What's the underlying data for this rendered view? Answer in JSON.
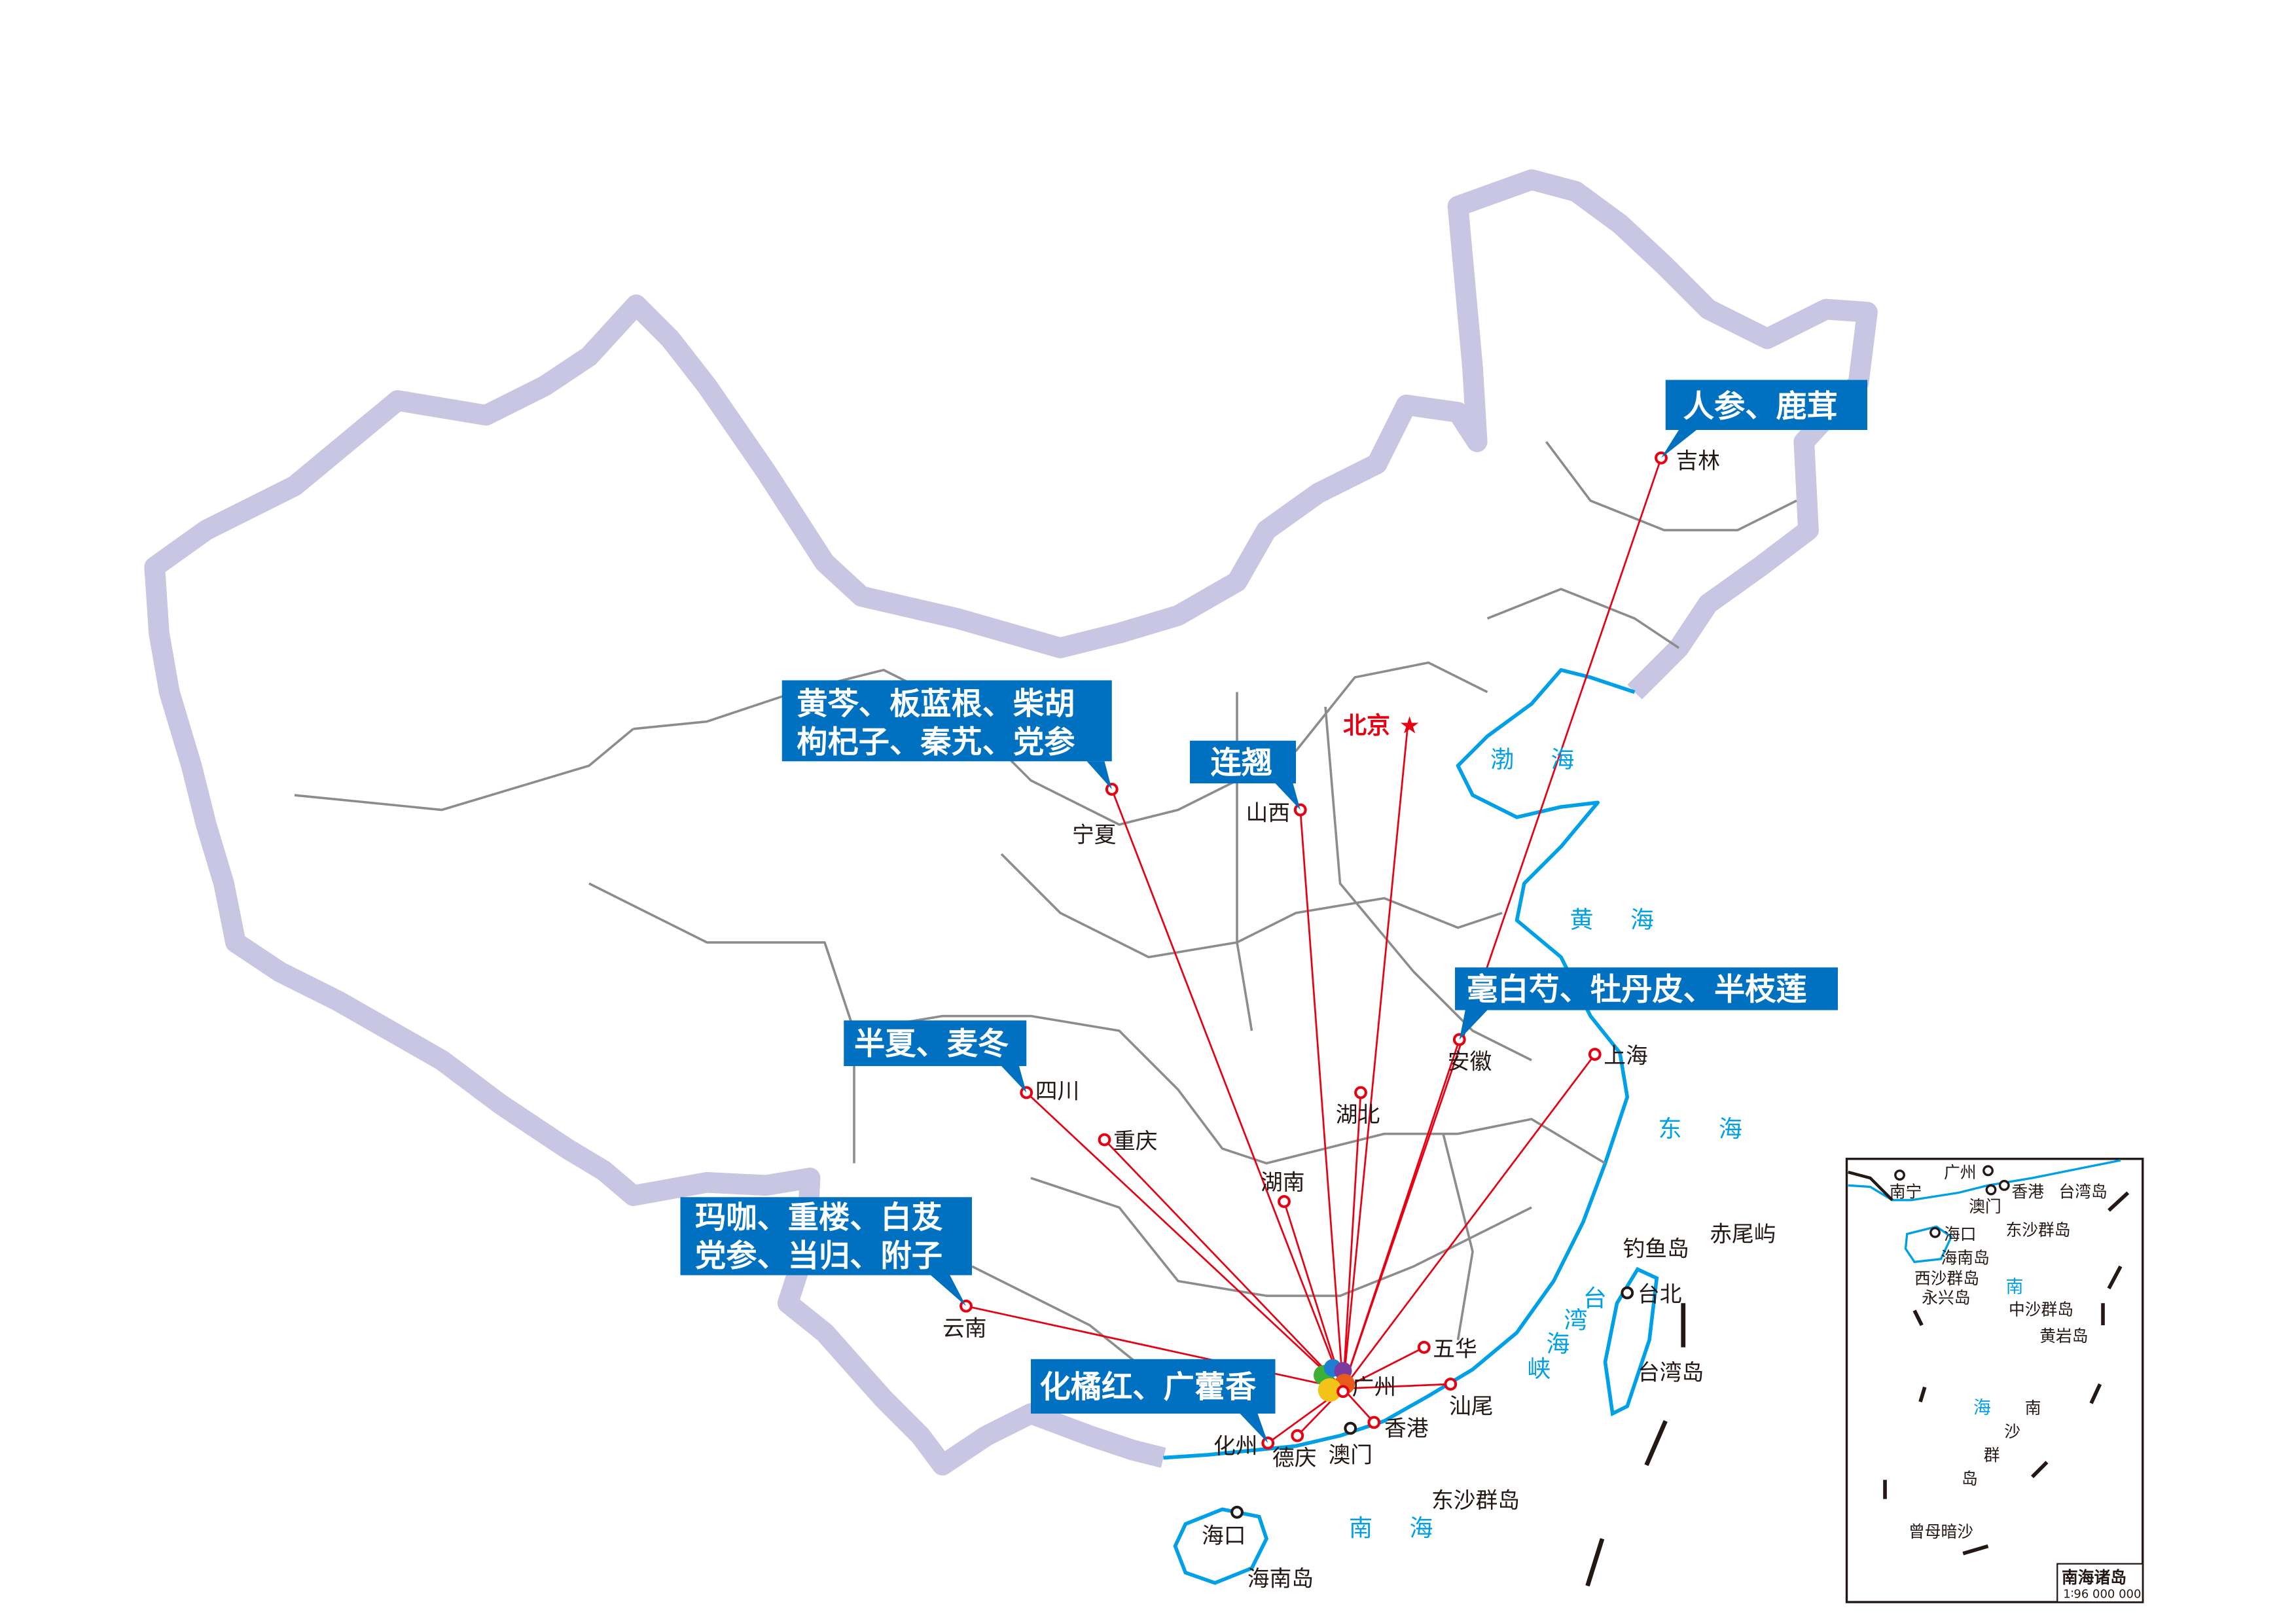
{
  "colors": {
    "callout_bg": "#0070c0",
    "route_line": "#e60012",
    "coast": "#00a0e9",
    "border_halo": "#c9c6e3",
    "province_border": "#8c8c8c"
  },
  "hub": {
    "name": "广州",
    "icon": "multicolor-logo-icon"
  },
  "capital": {
    "name": "北京",
    "icon": "red-star-icon"
  },
  "places": {
    "jilin": "吉林",
    "shanxi": "山西",
    "ningxia": "宁夏",
    "anhui": "安徽",
    "shanghai": "上海",
    "hubei": "湖北",
    "sichuan": "四川",
    "chongqing": "重庆",
    "hunan": "湖南",
    "yunnan": "云南",
    "wuhua": "五华",
    "shanwei": "汕尾",
    "hongkong": "香港",
    "deqing": "德庆",
    "huazhou": "化州",
    "macau": "澳门",
    "haikou": "海口",
    "taipei": "台北",
    "hainan_island": "海南岛",
    "taiwan_island": "台湾岛",
    "dongsha": "东沙群岛",
    "diaoyu": "钓鱼岛",
    "chiwei": "赤尾屿"
  },
  "seas": {
    "bohai": "渤 海",
    "huanghai": "黄 海",
    "donghai": "东 海",
    "nanhai": "南 海",
    "strait": [
      "台",
      "湾",
      "海",
      "峡"
    ]
  },
  "callouts": {
    "jilin": [
      "人参、鹿茸"
    ],
    "ningxia": [
      "黄芩、板蓝根、柴胡",
      "枸杞子、秦艽、党参"
    ],
    "shanxi": [
      "连翘"
    ],
    "anhui": [
      "毫白芍、牡丹皮、半枝莲"
    ],
    "sichuan": [
      "半夏、麦冬"
    ],
    "yunnan": [
      "玛咖、重楼、白芨",
      "党参、当归、附子"
    ],
    "guangdong": [
      "化橘红、广藿香"
    ]
  },
  "inset": {
    "title": "南海诸岛",
    "scale": "1∶96 000 000",
    "labels": {
      "nanning": "南宁",
      "guangzhou": "广州",
      "macau": "澳门",
      "hongkong": "香港",
      "taiwan": "台湾岛",
      "dongsha": "东沙群岛",
      "haikou": "海口",
      "hainan": "海南岛",
      "xisha": "西沙群岛",
      "yongxing": "永兴岛",
      "zhongsha": "中沙群岛",
      "huangyan": "黄岩岛",
      "zengmu": "曾母暗沙"
    },
    "sea_chars": [
      "南",
      "海"
    ],
    "nansha_chars": [
      "南",
      "沙",
      "群",
      "岛"
    ]
  }
}
